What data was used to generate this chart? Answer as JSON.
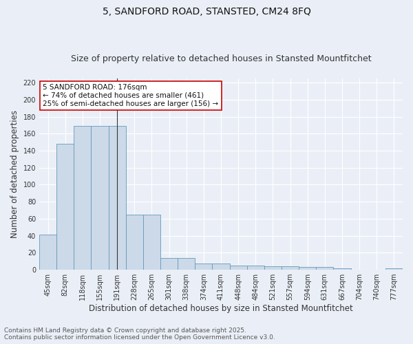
{
  "title1": "5, SANDFORD ROAD, STANSTED, CM24 8FQ",
  "title2": "Size of property relative to detached houses in Stansted Mountfitchet",
  "xlabel": "Distribution of detached houses by size in Stansted Mountfitchet",
  "ylabel": "Number of detached properties",
  "categories": [
    "45sqm",
    "82sqm",
    "118sqm",
    "155sqm",
    "191sqm",
    "228sqm",
    "265sqm",
    "301sqm",
    "338sqm",
    "374sqm",
    "411sqm",
    "448sqm",
    "484sqm",
    "521sqm",
    "557sqm",
    "594sqm",
    "631sqm",
    "667sqm",
    "704sqm",
    "740sqm",
    "777sqm"
  ],
  "values": [
    41,
    148,
    169,
    169,
    169,
    65,
    65,
    14,
    14,
    7,
    7,
    5,
    5,
    4,
    4,
    3,
    3,
    2,
    0,
    0,
    2
  ],
  "bar_color": "#ccd9e8",
  "bar_edge_color": "#6699bb",
  "annotation_text": "5 SANDFORD ROAD: 176sqm\n← 74% of detached houses are smaller (461)\n25% of semi-detached houses are larger (156) →",
  "annotation_box_color": "#ffffff",
  "annotation_box_edge": "#cc0000",
  "ylim": [
    0,
    225
  ],
  "yticks": [
    0,
    20,
    40,
    60,
    80,
    100,
    120,
    140,
    160,
    180,
    200,
    220
  ],
  "footer1": "Contains HM Land Registry data © Crown copyright and database right 2025.",
  "footer2": "Contains public sector information licensed under the Open Government Licence v3.0.",
  "bg_color": "#eaeff7",
  "plot_bg_color": "#eaeff7",
  "grid_color": "#ffffff",
  "title1_fontsize": 10,
  "title2_fontsize": 9,
  "xlabel_fontsize": 8.5,
  "ylabel_fontsize": 8.5,
  "tick_fontsize": 7,
  "annotation_fontsize": 7.5,
  "footer_fontsize": 6.5
}
